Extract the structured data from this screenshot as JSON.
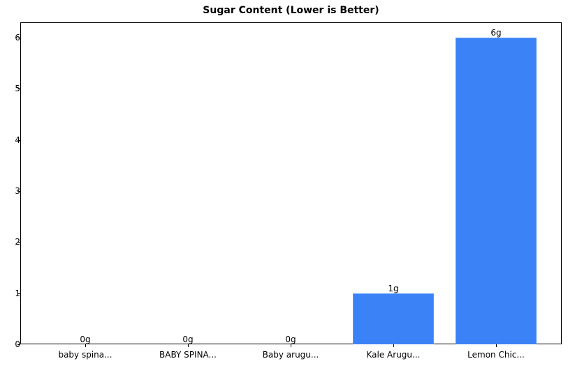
{
  "chart_data": {
    "type": "bar",
    "title": "Sugar Content (Lower is Better)",
    "xlabel": "",
    "ylabel": "",
    "categories": [
      "baby spina...",
      "BABY SPINA...",
      "Baby arugu...",
      "Kale Arugu...",
      "Lemon Chic..."
    ],
    "values": [
      0,
      0,
      0,
      1,
      6
    ],
    "value_labels": [
      "0g",
      "0g",
      "0g",
      "1g",
      "6g"
    ],
    "ylim": [
      0,
      6.3
    ],
    "yticks": [
      0,
      1,
      2,
      3,
      4,
      5,
      6
    ],
    "grid": false,
    "legend": null,
    "bar_color": "#3b82f6"
  }
}
